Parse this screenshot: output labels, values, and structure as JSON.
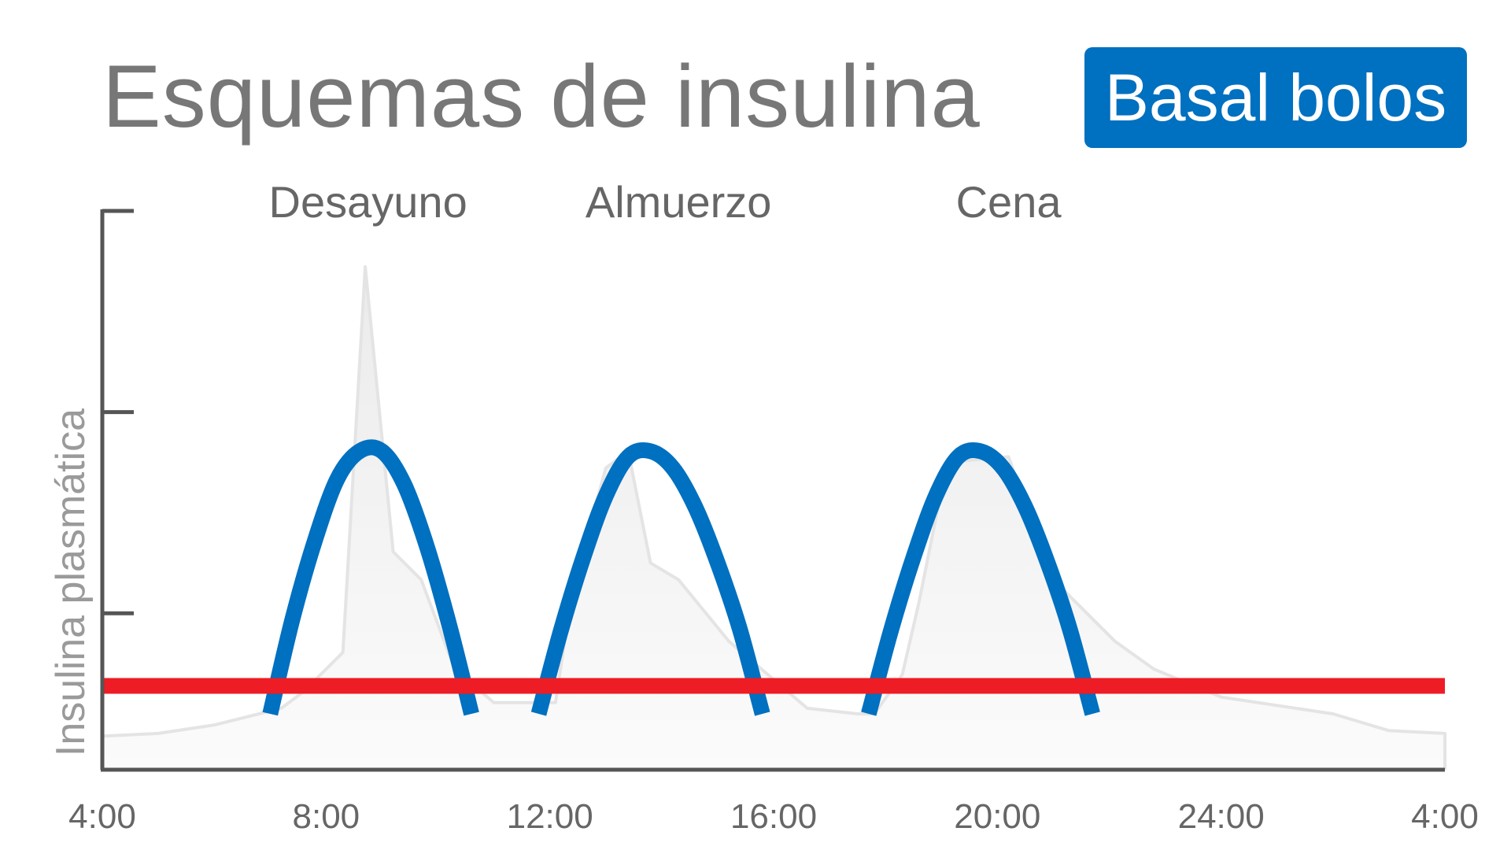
{
  "title": "Esquemas de insulina",
  "badge": {
    "label": "Basal bolos",
    "color": "#0070c0"
  },
  "chart_data": {
    "type": "line",
    "title": "Esquemas de insulina",
    "ylabel": "Insulina plasmática",
    "xlabel": "",
    "x_tick_labels": [
      "4:00",
      "8:00",
      "12:00",
      "16:00",
      "20:00",
      "24:00",
      "4:00"
    ],
    "x_range_hours": [
      4,
      28
    ],
    "y_range": [
      0,
      100
    ],
    "y_ticks": [
      0,
      28,
      64,
      100
    ],
    "grid": false,
    "meal_annotations": [
      {
        "label": "Desayuno",
        "x": 8.75
      },
      {
        "label": "Almuerzo",
        "x": 14.3
      },
      {
        "label": "Cena",
        "x": 20.2
      }
    ],
    "series": [
      {
        "style": "shaded-area",
        "color": "#e4e4e4",
        "fill": "#f5f5f5",
        "x": [
          4,
          5,
          6,
          7.2,
          7.6,
          8.3,
          8.7,
          9.2,
          9.7,
          10.3,
          11.0,
          11.6,
          11.9,
          12.1,
          12.4,
          13.0,
          13.4,
          13.8,
          14.3,
          15.2,
          16.6,
          17.5,
          17.8,
          18.3,
          18.6,
          19.1,
          20.2,
          21.0,
          22.1,
          22.8,
          24,
          26,
          27,
          28.0,
          28.0
        ],
        "y": [
          6,
          6.5,
          8,
          11,
          14,
          21,
          90,
          39,
          34,
          18,
          12,
          12,
          12,
          12,
          32,
          54,
          57,
          37,
          34,
          23,
          11,
          10,
          10,
          17,
          30,
          55,
          56,
          34,
          23,
          18,
          13,
          10,
          7,
          6.5,
          0
        ]
      },
      {
        "style": "bolus-arc",
        "color": "#0070c0",
        "segments": [
          {
            "x": [
              7.0,
              7.4,
              7.8,
              8.2,
              8.6,
              9.0,
              9.4,
              9.8,
              10.2,
              10.6
            ],
            "y": [
              10,
              27,
              41,
              52,
              57,
              57,
              51,
              40,
              26,
              10
            ]
          },
          {
            "x": [
              11.8,
              12.2,
              12.6,
              13.0,
              13.4,
              13.8,
              14.2,
              14.6,
              15.0,
              15.4,
              15.8
            ],
            "y": [
              10,
              25,
              38,
              49,
              56,
              57,
              54,
              47,
              37,
              25,
              10
            ]
          },
          {
            "x": [
              17.7,
              18.1,
              18.5,
              18.9,
              19.3,
              19.7,
              20.1,
              20.5,
              20.9,
              21.3,
              21.7
            ],
            "y": [
              10,
              25,
              38,
              49,
              56,
              57,
              54,
              47,
              37,
              25,
              10
            ]
          }
        ]
      },
      {
        "style": "basal-line",
        "color": "#ee1c24",
        "x": [
          4,
          28
        ],
        "y": [
          15,
          15
        ]
      }
    ]
  }
}
